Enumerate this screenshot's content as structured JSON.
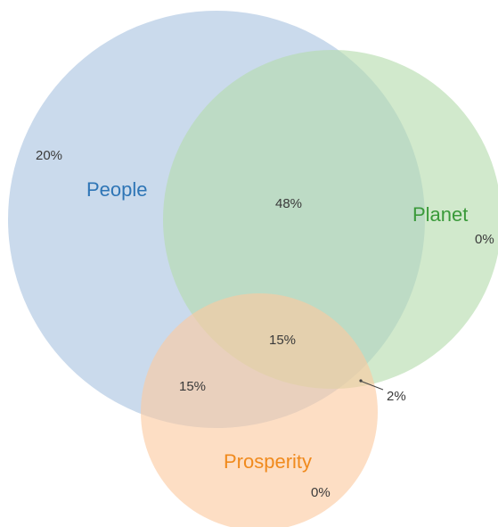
{
  "sets": {
    "people": {
      "label": "People",
      "color": "#2e75b6",
      "fill": "#a9c4e0"
    },
    "planet": {
      "label": "Planet",
      "color": "#3a9a3a",
      "fill": "#b5dbac"
    },
    "prosperity": {
      "label": "Prosperity",
      "color": "#f08a1d",
      "fill": "#fbc9a0"
    }
  },
  "regions": {
    "people_only": "20%",
    "planet_only": "0%",
    "prosperity_only": "0%",
    "people_planet": "48%",
    "people_prosperity": "15%",
    "all_three": "15%",
    "planet_prosperity": "2%"
  }
}
